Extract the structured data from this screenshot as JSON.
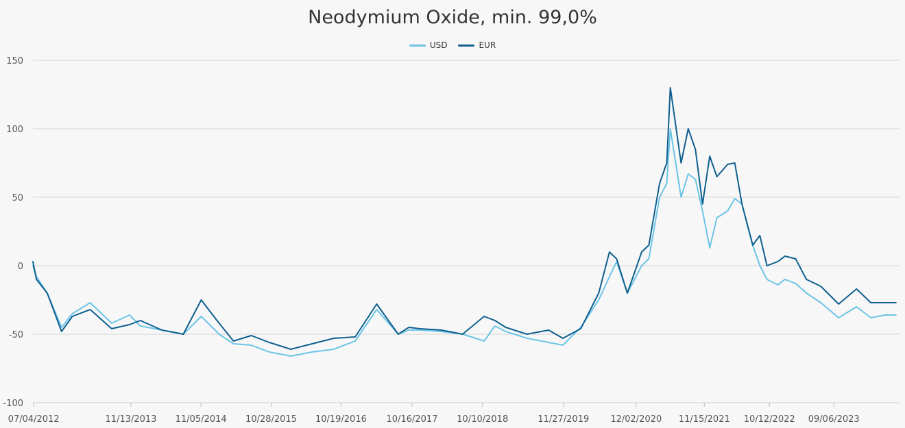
{
  "chart_data": {
    "type": "line",
    "title": "Neodymium Oxide, min. 99,0%",
    "xlabel": "",
    "ylabel": "",
    "ylim": [
      -100,
      150
    ],
    "yticks": [
      150,
      100,
      50,
      0,
      -50,
      -100
    ],
    "xticks": [
      "07/04/2012",
      "11/13/2013",
      "11/05/2014",
      "10/28/2015",
      "10/19/2016",
      "10/16/2017",
      "10/10/2018",
      "11/27/2019",
      "12/02/2020",
      "11/15/2021",
      "10/12/2022",
      "09/06/2023"
    ],
    "grid": "horizontal",
    "legend_position": "top-center",
    "x": [
      2012.5,
      2012.55,
      2012.7,
      2012.9,
      2013.05,
      2013.3,
      2013.6,
      2013.85,
      2014.0,
      2014.3,
      2014.6,
      2014.85,
      2015.1,
      2015.3,
      2015.55,
      2015.8,
      2016.1,
      2016.4,
      2016.7,
      2017.0,
      2017.3,
      2017.6,
      2017.75,
      2017.9,
      2018.2,
      2018.5,
      2018.8,
      2018.95,
      2019.1,
      2019.4,
      2019.7,
      2019.9,
      2020.15,
      2020.4,
      2020.55,
      2020.65,
      2020.8,
      2020.9,
      2021.0,
      2021.1,
      2021.25,
      2021.35,
      2021.4,
      2021.55,
      2021.65,
      2021.75,
      2021.85,
      2021.95,
      2022.05,
      2022.2,
      2022.3,
      2022.4,
      2022.55,
      2022.65,
      2022.75,
      2022.9,
      2023.0,
      2023.15,
      2023.3,
      2023.5,
      2023.75,
      2024.0,
      2024.2,
      2024.4,
      2024.55
    ],
    "series": [
      {
        "name": "USD",
        "color": "#6cc4e6",
        "values": [
          0,
          -8,
          -20,
          -45,
          -35,
          -27,
          -42,
          -36,
          -44,
          -47,
          -50,
          -37,
          -50,
          -57,
          -58,
          -63,
          -66,
          -63,
          -61,
          -55,
          -32,
          -50,
          -47,
          -47,
          -48,
          -50,
          -55,
          -44,
          -48,
          -53,
          -56,
          -58,
          -45,
          -25,
          -8,
          3,
          -20,
          -10,
          0,
          5,
          50,
          60,
          100,
          50,
          67,
          63,
          40,
          13,
          35,
          40,
          49,
          45,
          15,
          0,
          -10,
          -14,
          -10,
          -13,
          -20,
          -27,
          -38,
          -30,
          -38,
          -36,
          -36
        ]
      },
      {
        "name": "EUR",
        "color": "#0e5f8f",
        "values": [
          3,
          -10,
          -20,
          -48,
          -37,
          -32,
          -46,
          -43,
          -40,
          -47,
          -50,
          -25,
          -42,
          -55,
          -51,
          -56,
          -61,
          -57,
          -53,
          -52,
          -28,
          -50,
          -45,
          -46,
          -47,
          -50,
          -37,
          -40,
          -45,
          -50,
          -47,
          -53,
          -46,
          -20,
          10,
          5,
          -20,
          -5,
          10,
          15,
          60,
          75,
          130,
          75,
          100,
          85,
          45,
          80,
          65,
          74,
          75,
          45,
          15,
          22,
          0,
          3,
          7,
          5,
          -10,
          -15,
          -28,
          -17,
          -27,
          -27,
          -27
        ]
      }
    ]
  }
}
